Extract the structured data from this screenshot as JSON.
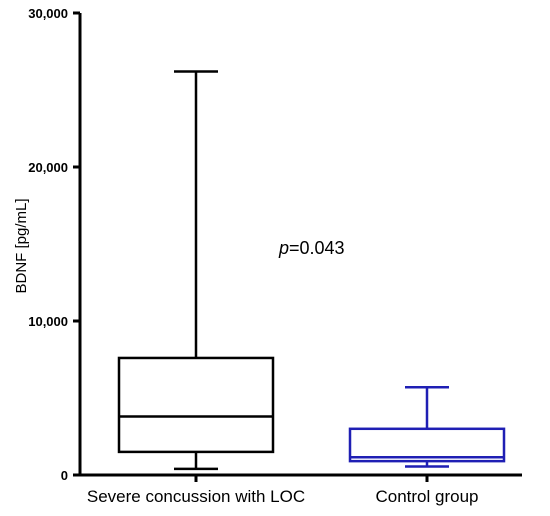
{
  "chart_data": {
    "type": "box",
    "title": "",
    "xlabel": "",
    "ylabel": "BDNF [pg/mL]",
    "ylim": [
      0,
      30000
    ],
    "yticks": [
      0,
      10000,
      20000,
      30000
    ],
    "ytick_labels": [
      "0",
      "10,000",
      "20,000",
      "30,000"
    ],
    "grid": false,
    "categories": [
      "Severe concussion with LOC",
      "Control group"
    ],
    "series": [
      {
        "category": "Severe concussion with LOC",
        "min": 400,
        "q1": 1500,
        "median": 3800,
        "q3": 7600,
        "max": 26200,
        "color": "#000000"
      },
      {
        "category": "Control group",
        "min": 550,
        "q1": 900,
        "median": 1150,
        "q3": 3000,
        "max": 5700,
        "color": "#1f1fb4"
      }
    ],
    "annotation": {
      "italic_part": "p",
      "rest": "=0.043"
    }
  }
}
